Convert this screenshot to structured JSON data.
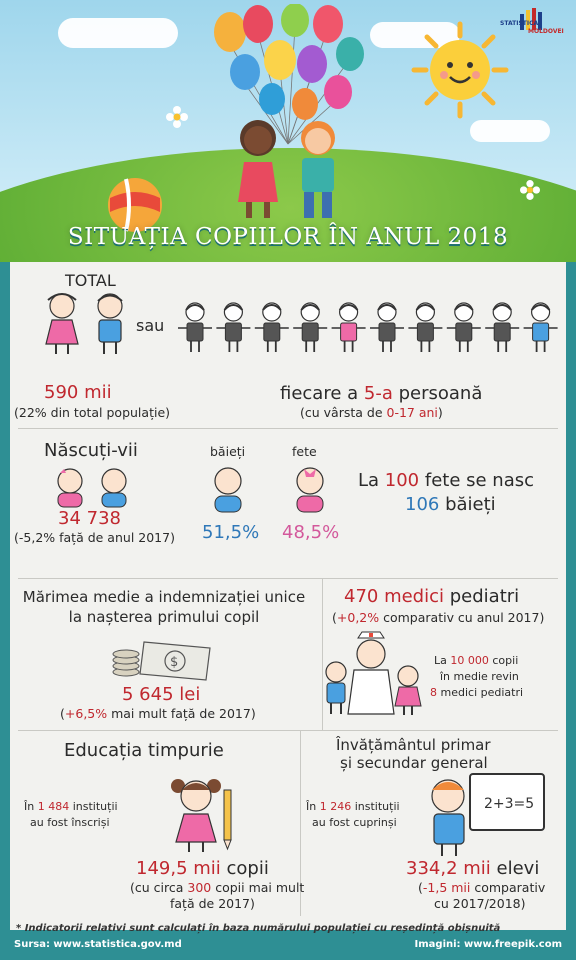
{
  "header": {
    "title": "SITUAȚIA COPIILOR ÎN ANUL 2018",
    "logo_line1": "STATISTICA",
    "logo_line2": "MOLDOVEI"
  },
  "total": {
    "label": "TOTAL",
    "or_label": "sau",
    "value": "590 mii",
    "share_note": "(22% din total populație)",
    "every_prefix": "fiecare a ",
    "every_value": "5-a",
    "every_suffix": " persoană",
    "age_prefix": "(cu vârsta de ",
    "age_value": "0-17 ani",
    "age_suffix": ")"
  },
  "births": {
    "label": "Născuți-vii",
    "value": "34 738",
    "note": "(-5,2% față de anul 2017)",
    "boys_label": "băieți",
    "girls_label": "fete",
    "boys_pct": "51,5%",
    "girls_pct": "48,5%",
    "ratio_prefix": "La ",
    "ratio_girls_num": "100",
    "ratio_mid": " fete se nasc",
    "ratio_boys_num": "106",
    "ratio_boys_word": " băieți"
  },
  "allowance": {
    "line1": "Mărimea medie a indemnizației unice",
    "line2": "la nașterea primului copil",
    "value": "5 645 lei",
    "note_prefix": "(",
    "note_value": "+6,5%",
    "note_suffix": " mai mult față de 2017)"
  },
  "pediatrics": {
    "value": "470 medici",
    "value_suffix": " pediatri",
    "note_prefix": "(",
    "note_value": "+0,2%",
    "note_suffix": " comparativ cu anul 2017)",
    "per_line1_prefix": "La ",
    "per_line1_value": "10 000",
    "per_line1_suffix": " copii",
    "per_line2": "în medie revin",
    "per_line3_value": "8",
    "per_line3_suffix": " medici pediatri"
  },
  "early_edu": {
    "title": "Educația timpurie",
    "inst_prefix": "În ",
    "inst_value": "1 484",
    "inst_suffix": " instituții",
    "inst_line2": "au fost înscriși",
    "value": "149,5 mii",
    "value_suffix": " copii",
    "note_prefix": "(cu circa ",
    "note_value": "300",
    "note_suffix": " copii mai mult",
    "note_line2": "față de 2017)"
  },
  "school_edu": {
    "title_line1": "Învățământul primar",
    "title_line2": "și secundar general",
    "inst_prefix": "În ",
    "inst_value": "1 246",
    "inst_suffix": " instituții",
    "inst_line2": "au fost cuprinși",
    "value": "334,2 mii",
    "value_suffix": " elevi",
    "note_prefix": "(",
    "note_value": "-1,5 mii",
    "note_suffix": " comparativ",
    "note_line2": "cu 2017/2018)",
    "board_text": "2+3=5"
  },
  "footer": {
    "note": "* Indicatorii relativi sunt calculați în baza numărului populației cu reședință obișnuită",
    "source": "Sursa: www.statistica.gov.md",
    "images": "Imagini: www.freepik.com"
  },
  "colors": {
    "accent_red": "#c0282f",
    "boys_blue": "#2f78b8",
    "girls_pink": "#d3589b",
    "teal_frame": "#2e8f94"
  }
}
